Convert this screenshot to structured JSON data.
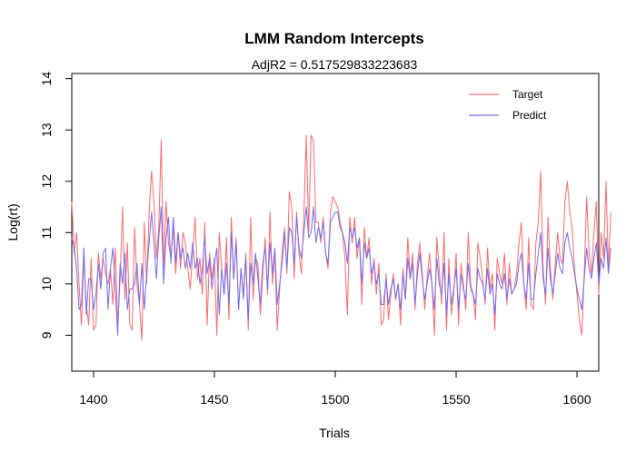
{
  "chart_data": {
    "type": "line",
    "title": "LMM Random Intercepts",
    "subtitle": "AdjR2 = 0.517529833223683",
    "xlabel": "Trials",
    "ylabel": "Log(rt)",
    "xlim": [
      1391,
      1609
    ],
    "ylim": [
      8.3,
      14.1
    ],
    "xticks": [
      1400,
      1450,
      1500,
      1550,
      1600
    ],
    "yticks": [
      9,
      10,
      11,
      12,
      13,
      14
    ],
    "legend": {
      "position": "top-right"
    },
    "grid": false,
    "series": [
      {
        "name": "Target",
        "color": "#ff6a6a",
        "x_start": 1391,
        "values": [
          11.6,
          10.6,
          11.0,
          10.0,
          9.2,
          10.5,
          9.6,
          9.2,
          10.5,
          9.1,
          9.2,
          10.6,
          10.1,
          10.5,
          10.2,
          10.0,
          10.3,
          9.6,
          10.7,
          9.2,
          10.1,
          11.5,
          9.7,
          10.8,
          9.2,
          9.1,
          11.1,
          10.0,
          9.6,
          8.9,
          11.2,
          10.0,
          11.4,
          12.2,
          11.6,
          10.5,
          11.1,
          12.8,
          10.3,
          11.6,
          10.8,
          10.5,
          11.1,
          10.2,
          11.0,
          10.3,
          11.0,
          10.8,
          10.3,
          9.9,
          10.6,
          11.3,
          10.1,
          10.5,
          9.8,
          11.2,
          9.2,
          10.6,
          10.1,
          10.5,
          9.0,
          11.0,
          10.3,
          9.8,
          10.9,
          9.3,
          11.3,
          10.1,
          10.9,
          9.5,
          10.3,
          9.8,
          10.6,
          9.1,
          11.3,
          9.7,
          10.5,
          10.4,
          9.4,
          10.2,
          10.9,
          9.8,
          11.4,
          10.0,
          10.6,
          9.1,
          9.9,
          10.6,
          11.1,
          10.2,
          11.8,
          11.5,
          10.1,
          11.4,
          10.6,
          10.2,
          11.3,
          12.9,
          11.0,
          12.9,
          12.8,
          11.2,
          11.2,
          10.8,
          11.3,
          10.6,
          10.3,
          11.4,
          11.7,
          11.6,
          11.5,
          11.2,
          11.0,
          10.5,
          9.4,
          11.3,
          10.8,
          11.3,
          10.5,
          10.9,
          9.6,
          11.1,
          10.5,
          10.9,
          10.0,
          10.5,
          9.8,
          10.4,
          9.2,
          9.3,
          10.2,
          9.3,
          9.8,
          10.2,
          9.7,
          10.0,
          9.2,
          10.3,
          9.7,
          10.9,
          10.1,
          10.6,
          9.5,
          10.4,
          10.8,
          10.2,
          9.5,
          10.1,
          10.6,
          10.0,
          9.0,
          10.9,
          10.3,
          9.6,
          11.0,
          9.1,
          10.5,
          9.4,
          9.8,
          10.6,
          9.2,
          10.4,
          10.0,
          9.5,
          11.0,
          10.0,
          9.8,
          9.3,
          10.8,
          10.5,
          10.1,
          9.6,
          10.7,
          9.9,
          10.2,
          9.1,
          10.5,
          10.2,
          10.0,
          10.6,
          9.6,
          10.4,
          9.8,
          9.9,
          10.2,
          10.8,
          11.2,
          10.0,
          9.5,
          10.9,
          9.6,
          9.5,
          10.8,
          11.2,
          12.2,
          10.3,
          9.6,
          11.3,
          10.3,
          9.7,
          10.4,
          11.0,
          10.5,
          10.4,
          11.6,
          12.0,
          11.4,
          11.1,
          10.3,
          9.8,
          9.3,
          9.0,
          10.2,
          11.7,
          10.6,
          10.2,
          11.0,
          11.6,
          9.8,
          11.0,
          10.5,
          12.0,
          10.3,
          11.4
        ]
      },
      {
        "name": "Predict",
        "color": "#6e6ef5",
        "x_start": 1391,
        "values": [
          10.9,
          10.7,
          10.3,
          9.5,
          9.6,
          10.7,
          9.4,
          10.1,
          10.1,
          9.5,
          9.8,
          10.4,
          9.9,
          10.6,
          10.7,
          9.5,
          10.3,
          10.7,
          9.9,
          9.0,
          10.4,
          10.0,
          10.6,
          9.5,
          9.9,
          9.9,
          10.0,
          10.4,
          9.6,
          10.4,
          9.5,
          10.2,
          10.8,
          11.4,
          10.8,
          10.1,
          10.9,
          11.5,
          10.0,
          10.9,
          11.3,
          10.4,
          11.3,
          10.4,
          11.0,
          10.5,
          10.7,
          10.3,
          10.6,
          10.3,
          10.8,
          10.3,
          10.5,
          10.0,
          10.3,
          10.9,
          10.2,
          10.5,
          9.9,
          10.4,
          10.7,
          9.4,
          10.3,
          9.8,
          10.4,
          9.6,
          11.0,
          10.1,
          10.8,
          9.5,
          10.3,
          9.7,
          10.5,
          9.3,
          10.4,
          10.0,
          10.6,
          10.1,
          9.6,
          10.4,
          10.7,
          9.9,
          10.8,
          10.2,
          10.7,
          9.6,
          10.0,
          10.4,
          11.0,
          10.3,
          11.1,
          11.0,
          10.4,
          11.3,
          10.7,
          10.5,
          11.0,
          11.5,
          10.9,
          11.0,
          11.5,
          10.8,
          11.1,
          10.9,
          11.2,
          10.6,
          10.4,
          11.2,
          11.3,
          11.4,
          11.4,
          11.1,
          11.0,
          10.8,
          10.4,
          11.1,
          10.9,
          11.1,
          10.7,
          10.9,
          10.0,
          10.8,
          10.5,
          10.7,
          10.2,
          10.4,
          10.0,
          10.2,
          9.6,
          9.6,
          10.1,
          9.6,
          9.9,
          10.1,
          9.7,
          10.0,
          9.5,
          10.2,
          9.7,
          10.5,
          10.1,
          10.4,
          9.6,
          10.2,
          10.6,
          10.1,
          9.7,
          10.0,
          10.3,
          10.0,
          9.5,
          10.5,
          10.0,
          9.8,
          10.4,
          9.4,
          10.2,
          9.6,
          9.9,
          10.3,
          9.5,
          10.2,
          9.9,
          9.7,
          10.4,
          9.9,
          9.8,
          9.6,
          10.3,
          10.1,
          10.0,
          9.7,
          10.3,
          9.8,
          10.0,
          9.4,
          10.2,
          10.0,
          9.9,
          10.2,
          9.7,
          10.1,
          9.8,
          9.9,
          10.0,
          10.4,
          10.6,
          10.0,
          9.7,
          10.4,
          9.7,
          9.7,
          10.2,
          10.6,
          11.0,
          10.1,
          9.8,
          10.7,
          10.1,
          9.8,
          10.2,
          10.6,
          10.3,
          10.2,
          10.8,
          11.0,
          10.7,
          10.5,
          10.2,
          9.9,
          9.7,
          9.5,
          10.1,
          10.7,
          10.3,
          10.1,
          10.5,
          10.8,
          10.0,
          10.5,
          10.3,
          10.9,
          10.2,
          10.7
        ]
      }
    ]
  }
}
